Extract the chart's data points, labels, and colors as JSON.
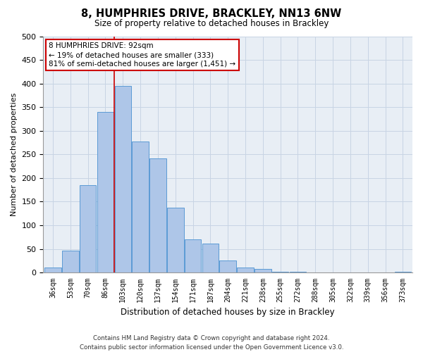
{
  "title": "8, HUMPHRIES DRIVE, BRACKLEY, NN13 6NW",
  "subtitle": "Size of property relative to detached houses in Brackley",
  "xlabel": "Distribution of detached houses by size in Brackley",
  "ylabel": "Number of detached properties",
  "bin_labels": [
    "36sqm",
    "53sqm",
    "70sqm",
    "86sqm",
    "103sqm",
    "120sqm",
    "137sqm",
    "154sqm",
    "171sqm",
    "187sqm",
    "204sqm",
    "221sqm",
    "238sqm",
    "255sqm",
    "272sqm",
    "288sqm",
    "305sqm",
    "322sqm",
    "339sqm",
    "356sqm",
    "373sqm"
  ],
  "bar_values": [
    10,
    47,
    185,
    340,
    395,
    278,
    242,
    137,
    70,
    62,
    25,
    10,
    7,
    2,
    1,
    0,
    0,
    0,
    0,
    0,
    2
  ],
  "bar_color": "#aec6e8",
  "bar_edge_color": "#5b9bd5",
  "ylim": [
    0,
    500
  ],
  "yticks": [
    0,
    50,
    100,
    150,
    200,
    250,
    300,
    350,
    400,
    450,
    500
  ],
  "annotation_title": "8 HUMPHRIES DRIVE: 92sqm",
  "annotation_line1": "← 19% of detached houses are smaller (333)",
  "annotation_line2": "81% of semi-detached houses are larger (1,451) →",
  "annotation_box_color": "#ffffff",
  "annotation_box_edge_color": "#cc0000",
  "vertical_line_color": "#cc0000",
  "footer_line1": "Contains HM Land Registry data © Crown copyright and database right 2024.",
  "footer_line2": "Contains public sector information licensed under the Open Government Licence v3.0.",
  "background_color": "#ffffff",
  "plot_bg_color": "#e8eef5",
  "grid_color": "#c8d4e4"
}
